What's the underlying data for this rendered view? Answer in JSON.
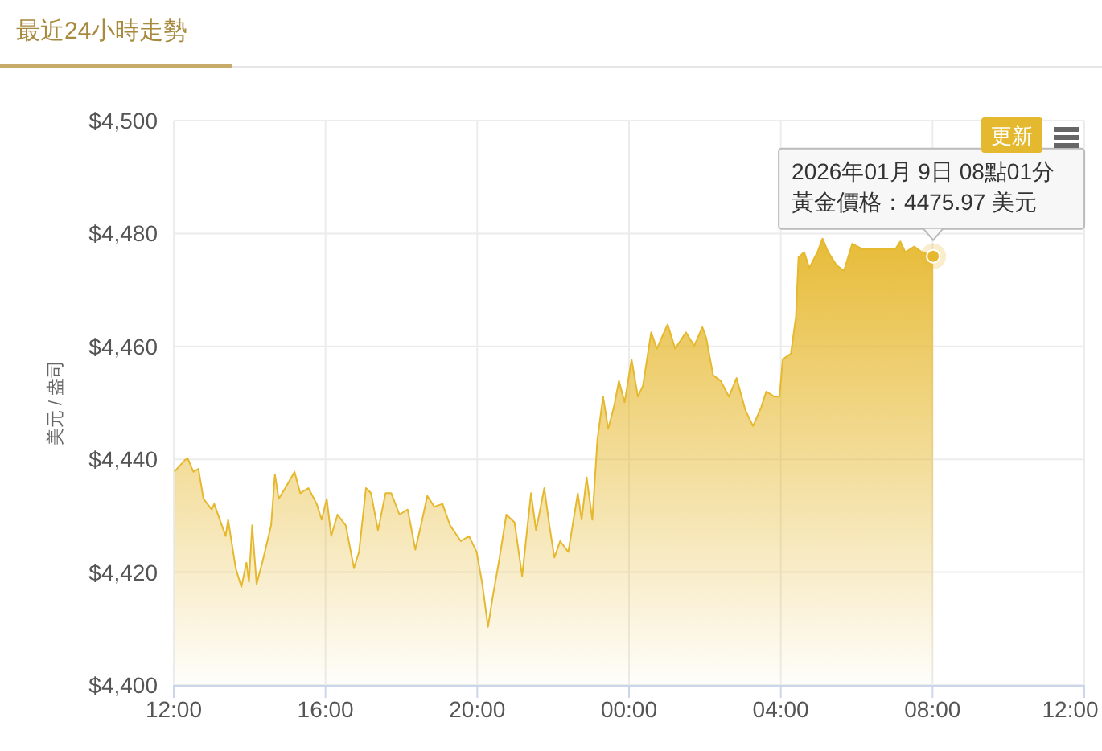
{
  "chart_data": {
    "type": "area",
    "title": "最近24小時走勢",
    "ylabel": "美元 / 盎司",
    "annotations": [
      "2026年01月 9日 08點01分",
      "黃金價格：4475.97 美元",
      "更新"
    ],
    "xlim": [
      "2026-01-08T12:00",
      "2026-01-09T12:00"
    ],
    "ylim": [
      4400,
      4500
    ],
    "xticks": [
      {
        "value": "2026-01-08T12:00",
        "label": "12:00"
      },
      {
        "value": "2026-01-08T16:00",
        "label": "16:00"
      },
      {
        "value": "2026-01-08T20:00",
        "label": "20:00"
      },
      {
        "value": "2026-01-09T00:00",
        "label": "00:00"
      },
      {
        "value": "2026-01-09T04:00",
        "label": "04:00"
      },
      {
        "value": "2026-01-09T08:00",
        "label": "08:00"
      },
      {
        "value": "2026-01-09T12:00",
        "label": "12:00"
      }
    ],
    "yticks": [
      {
        "value": 4400,
        "label": "$4,400"
      },
      {
        "value": 4420,
        "label": "$4,420"
      },
      {
        "value": 4440,
        "label": "$4,440"
      },
      {
        "value": 4460,
        "label": "$4,460"
      },
      {
        "value": 4480,
        "label": "$4,480"
      },
      {
        "value": 4500,
        "label": "$4,500"
      }
    ],
    "grid": true,
    "x": [
      "2026-01-08T12:01",
      "2026-01-08T12:18",
      "2026-01-08T12:22",
      "2026-01-08T12:31",
      "2026-01-08T12:39",
      "2026-01-08T12:47",
      "2026-01-08T13:00",
      "2026-01-08T13:04",
      "2026-01-08T13:22",
      "2026-01-08T13:26",
      "2026-01-08T13:38",
      "2026-01-08T13:47",
      "2026-01-08T13:55",
      "2026-01-08T13:59",
      "2026-01-08T14:04",
      "2026-01-08T14:11",
      "2026-01-08T14:20",
      "2026-01-08T14:34",
      "2026-01-08T14:40",
      "2026-01-08T14:46",
      "2026-01-08T14:59",
      "2026-01-08T15:11",
      "2026-01-08T15:20",
      "2026-01-08T15:33",
      "2026-01-08T15:46",
      "2026-01-08T15:54",
      "2026-01-08T16:02",
      "2026-01-08T16:09",
      "2026-01-08T16:19",
      "2026-01-08T16:32",
      "2026-01-08T16:45",
      "2026-01-08T16:53",
      "2026-01-08T17:04",
      "2026-01-08T17:12",
      "2026-01-08T17:23",
      "2026-01-08T17:35",
      "2026-01-08T17:44",
      "2026-01-08T17:57",
      "2026-01-08T18:10",
      "2026-01-08T18:22",
      "2026-01-08T18:31",
      "2026-01-08T18:41",
      "2026-01-08T18:52",
      "2026-01-08T19:05",
      "2026-01-08T19:17",
      "2026-01-08T19:34",
      "2026-01-08T19:47",
      "2026-01-08T19:59",
      "2026-01-08T20:08",
      "2026-01-08T20:17",
      "2026-01-08T20:25",
      "2026-01-08T20:34",
      "2026-01-08T20:46",
      "2026-01-08T20:59",
      "2026-01-08T21:11",
      "2026-01-08T21:25",
      "2026-01-08T21:33",
      "2026-01-08T21:46",
      "2026-01-08T21:54",
      "2026-01-08T22:02",
      "2026-01-08T22:11",
      "2026-01-08T22:24",
      "2026-01-08T22:39",
      "2026-01-08T22:45",
      "2026-01-08T22:53",
      "2026-01-08T23:02",
      "2026-01-08T23:10",
      "2026-01-08T23:19",
      "2026-01-08T23:27",
      "2026-01-08T23:36",
      "2026-01-08T23:44",
      "2026-01-08T23:53",
      "2026-01-09T00:04",
      "2026-01-09T00:14",
      "2026-01-09T00:22",
      "2026-01-09T00:35",
      "2026-01-09T00:44",
      "2026-01-09T01:01",
      "2026-01-09T01:13",
      "2026-01-09T01:30",
      "2026-01-09T01:43",
      "2026-01-09T01:56",
      "2026-01-09T02:02",
      "2026-01-09T02:13",
      "2026-01-09T02:25",
      "2026-01-09T02:38",
      "2026-01-09T02:50",
      "2026-01-09T03:04",
      "2026-01-09T03:16",
      "2026-01-09T03:29",
      "2026-01-09T03:37",
      "2026-01-09T03:50",
      "2026-01-09T03:58",
      "2026-01-09T04:03",
      "2026-01-09T04:16",
      "2026-01-09T04:24",
      "2026-01-09T04:28",
      "2026-01-09T04:37",
      "2026-01-09T04:45",
      "2026-01-09T04:58",
      "2026-01-09T05:06",
      "2026-01-09T05:15",
      "2026-01-09T05:28",
      "2026-01-09T05:40",
      "2026-01-09T05:53",
      "2026-01-09T06:10",
      "2026-01-09T07:01",
      "2026-01-09T07:09",
      "2026-01-09T07:17",
      "2026-01-09T07:31",
      "2026-01-09T07:43",
      "2026-01-09T08:01"
    ],
    "series": [
      {
        "color": "#e6b82e",
        "values": [
          4437.8,
          4439.9,
          4440.2,
          4437.8,
          4438.3,
          4433.0,
          4431.1,
          4432.1,
          4426.4,
          4429.3,
          4420.7,
          4417.4,
          4421.7,
          4418.3,
          4428.3,
          4417.9,
          4421.7,
          4428.3,
          4437.3,
          4433.0,
          4435.4,
          4437.8,
          4434.0,
          4434.9,
          4432.1,
          4429.3,
          4433.0,
          4426.4,
          4430.2,
          4428.3,
          4420.7,
          4423.6,
          4434.9,
          4434.0,
          4427.4,
          4434.0,
          4434.0,
          4430.2,
          4431.1,
          4424.0,
          4428.3,
          4433.5,
          4431.6,
          4432.1,
          4428.3,
          4425.5,
          4426.4,
          4423.6,
          4417.9,
          4410.3,
          4416.0,
          4421.7,
          4430.2,
          4428.8,
          4419.3,
          4434.0,
          4427.4,
          4434.9,
          4428.3,
          4422.6,
          4425.5,
          4423.6,
          4434.0,
          4429.3,
          4436.8,
          4429.3,
          4443.5,
          4451.1,
          4445.4,
          4449.2,
          4453.9,
          4450.1,
          4457.7,
          4451.1,
          4453.0,
          4462.5,
          4459.6,
          4463.9,
          4459.6,
          4462.5,
          4460.1,
          4463.4,
          4461.5,
          4454.9,
          4453.9,
          4451.1,
          4454.4,
          4448.7,
          4445.9,
          4449.2,
          4452.0,
          4451.1,
          4451.1,
          4457.7,
          4458.7,
          4465.3,
          4475.8,
          4476.7,
          4473.9,
          4476.7,
          4479.1,
          4476.7,
          4474.4,
          4473.4,
          4478.2,
          4477.2,
          4477.2,
          4478.6,
          4476.7,
          4477.7,
          4476.7,
          4475.97
        ]
      }
    ]
  }
}
